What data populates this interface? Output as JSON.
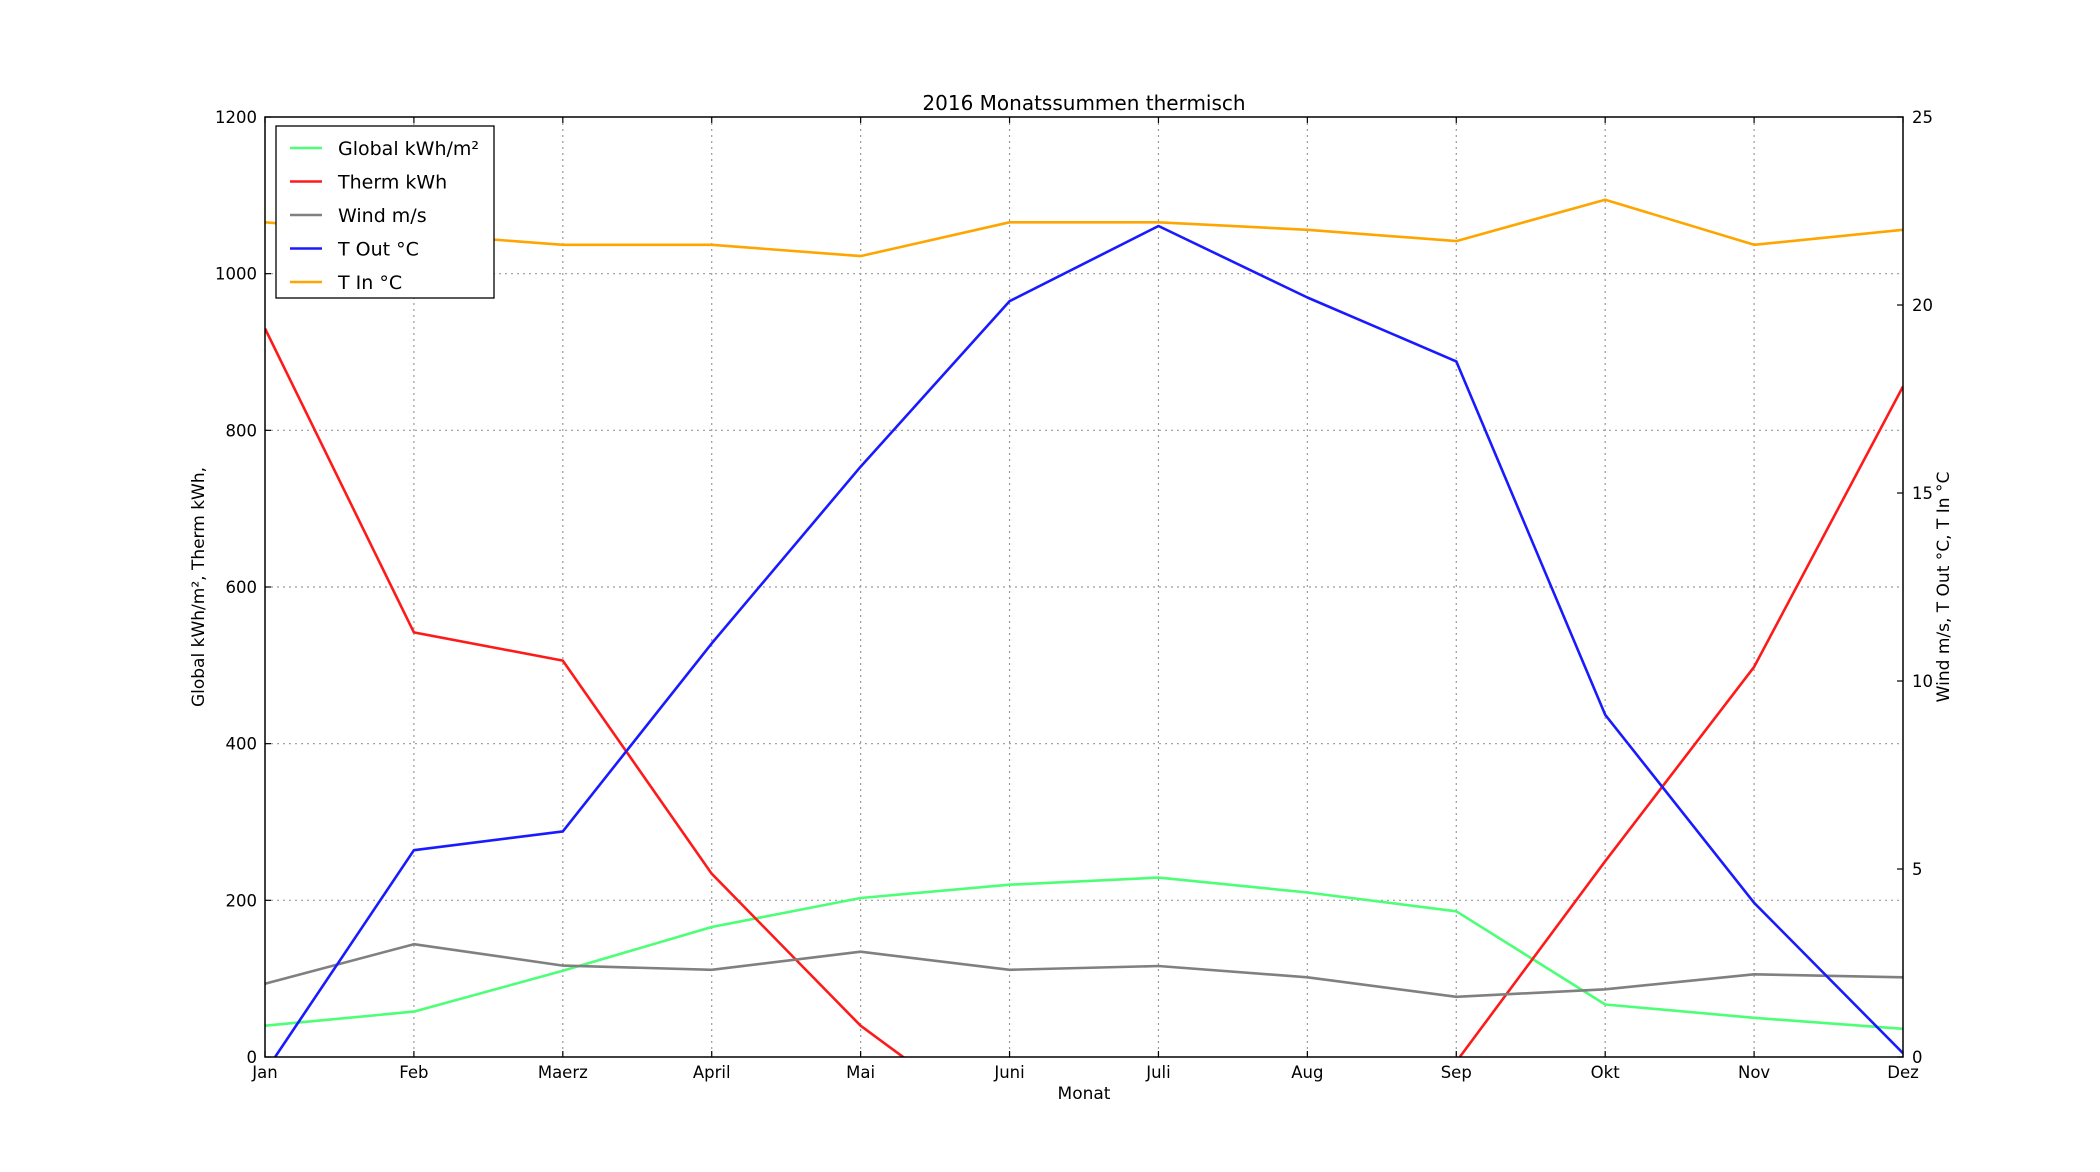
{
  "chart_data": {
    "type": "line",
    "title": "2016 Monatssummen thermisch",
    "xlabel": "Monat",
    "ylabel_left": "Global kWh/m², Therm kWh,",
    "ylabel_right": "Wind m/s, T Out °C, T In °C",
    "categories": [
      "Jan",
      "Feb",
      "Maerz",
      "April",
      "Mai",
      "Juni",
      "Juli",
      "Aug",
      "Sep",
      "Okt",
      "Nov",
      "Dez"
    ],
    "ylim_left": [
      0,
      1200
    ],
    "ylim_right": [
      0,
      25
    ],
    "yticks_left": [
      "0",
      "200",
      "400",
      "600",
      "800",
      "1000",
      "1200"
    ],
    "yticks_right": [
      "0",
      "5",
      "10",
      "15",
      "20",
      "25"
    ],
    "grid": true,
    "legend_position": "upper-left",
    "series": [
      {
        "name": "Global kWh/m²",
        "axis": "left",
        "color": "#4dff77",
        "values": [
          40,
          58,
          110,
          166,
          203,
          220,
          229,
          210,
          186,
          67,
          50,
          36
        ]
      },
      {
        "name": "Therm kWh",
        "axis": "left",
        "color": "#ff1a1a",
        "values": [
          930,
          542,
          506,
          234,
          40,
          -100,
          -100,
          -100,
          -6,
          250,
          498,
          856
        ]
      },
      {
        "name": "Wind m/s",
        "axis": "right",
        "color": "#808080",
        "values": [
          1.95,
          3.0,
          2.43,
          2.32,
          2.8,
          2.32,
          2.42,
          2.12,
          1.6,
          1.8,
          2.2,
          2.12
        ]
      },
      {
        "name": "T Out °C",
        "axis": "right",
        "color": "#1a1aff",
        "values": [
          -0.4,
          5.5,
          6.0,
          11.0,
          15.7,
          20.1,
          22.1,
          20.2,
          18.5,
          9.1,
          4.1,
          0.1
        ]
      },
      {
        "name": "T In °C",
        "axis": "right",
        "color": "#ffa500",
        "values": [
          22.2,
          21.9,
          21.6,
          21.6,
          21.3,
          22.2,
          22.2,
          22.0,
          21.7,
          22.8,
          21.6,
          22.0
        ]
      }
    ]
  }
}
